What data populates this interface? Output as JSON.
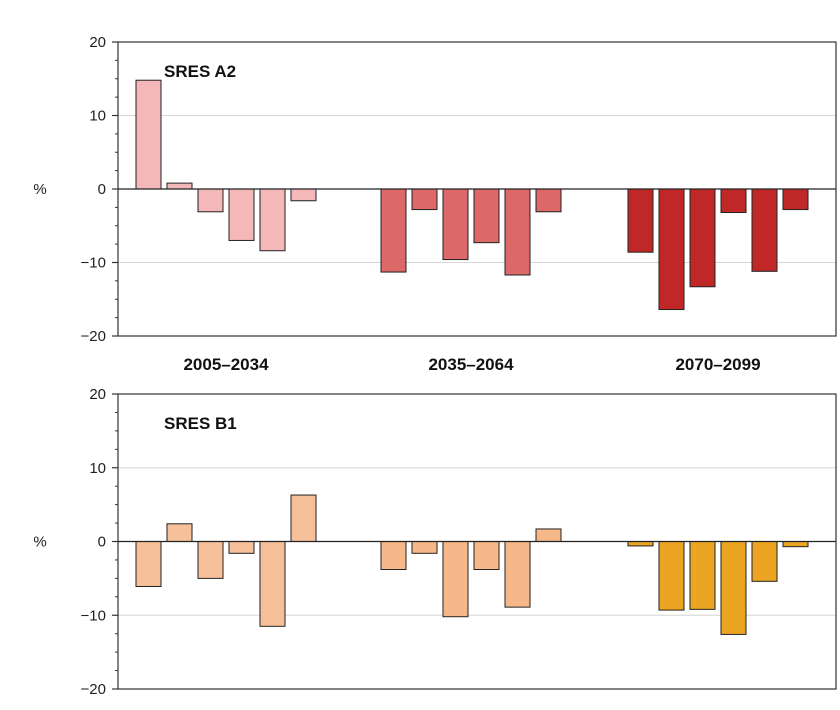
{
  "chart_data": [
    {
      "type": "bar",
      "title": "SRES A2",
      "ylabel": "%",
      "ylim": [
        -20,
        20
      ],
      "yticks": [
        -20,
        -10,
        0,
        10,
        20
      ],
      "grid": true,
      "groups": [
        {
          "label": "2005–2034",
          "values": [
            14.8,
            0.8,
            -3.1,
            -7.0,
            -8.4,
            -1.6
          ],
          "color": "#f4b8b8"
        },
        {
          "label": "2035–2064",
          "values": [
            -11.3,
            -2.8,
            -9.6,
            -7.3,
            -11.7,
            -3.1
          ],
          "color": "#dc6868"
        },
        {
          "label": "2070–2099",
          "values": [
            -8.6,
            -16.4,
            -13.3,
            -3.2,
            -11.2,
            -2.8
          ],
          "color": "#c02828"
        }
      ]
    },
    {
      "type": "bar",
      "title": "SRES B1",
      "ylabel": "%",
      "ylim": [
        -20,
        20
      ],
      "yticks": [
        -20,
        -10,
        0,
        10,
        20
      ],
      "grid": true,
      "groups": [
        {
          "label": "2005–2034",
          "values": [
            -6.1,
            2.4,
            -5.0,
            -1.6,
            -11.5,
            6.3
          ],
          "color": "#f6c09a"
        },
        {
          "label": "2035–2064",
          "values": [
            -3.8,
            -1.6,
            -10.2,
            -3.8,
            -8.9,
            1.7
          ],
          "color": "#f6b888"
        },
        {
          "label": "2070–2099",
          "values": [
            -0.6,
            -9.3,
            -9.2,
            -12.6,
            -5.4,
            -0.7
          ],
          "color": "#eba523"
        }
      ]
    }
  ]
}
